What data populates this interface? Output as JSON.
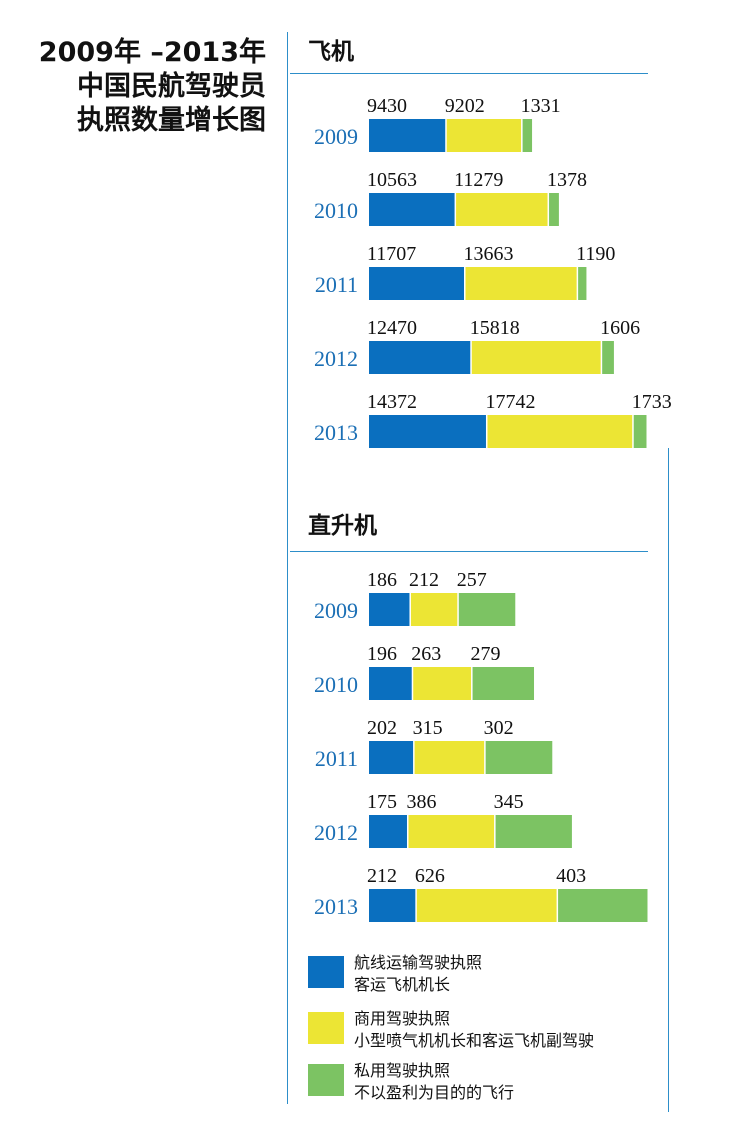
{
  "title": {
    "line1": "2009年 –2013年",
    "line2": "中国民航驾驶员",
    "line3": "执照数量增长图"
  },
  "colors": {
    "airline": "#0a6fbf",
    "commercial": "#ece534",
    "private": "#7cc363",
    "year_label": "#1b6fb5",
    "rule": "#2d8ec9"
  },
  "legend": [
    {
      "key": "airline",
      "line1": "航线运输驾驶执照",
      "line2": "客运飞机机长"
    },
    {
      "key": "commercial",
      "line1": "商用驾驶执照",
      "line2": "小型喷气机机长和客运飞机副驾驶"
    },
    {
      "key": "private",
      "line1": "私用驾驶执照",
      "line2": "不以盈利为目的的飞行"
    }
  ],
  "chart_data": [
    {
      "type": "bar",
      "stacked": true,
      "orientation": "horizontal",
      "title": "飞机",
      "categories": [
        "2009",
        "2010",
        "2011",
        "2012",
        "2013"
      ],
      "series": [
        {
          "key": "airline",
          "values": [
            9430,
            10563,
            11707,
            12470,
            14372
          ]
        },
        {
          "key": "commercial",
          "values": [
            9202,
            11279,
            13663,
            15818,
            17742
          ]
        },
        {
          "key": "private",
          "values": [
            1331,
            1378,
            1190,
            1606,
            1733
          ]
        }
      ]
    },
    {
      "type": "bar",
      "stacked": true,
      "orientation": "horizontal",
      "title": "直升机",
      "categories": [
        "2009",
        "2010",
        "2011",
        "2012",
        "2013"
      ],
      "series": [
        {
          "key": "airline",
          "values": [
            186,
            196,
            202,
            175,
            212
          ]
        },
        {
          "key": "commercial",
          "values": [
            212,
            263,
            315,
            386,
            626
          ]
        },
        {
          "key": "private",
          "values": [
            257,
            279,
            302,
            345,
            403
          ]
        }
      ]
    }
  ]
}
